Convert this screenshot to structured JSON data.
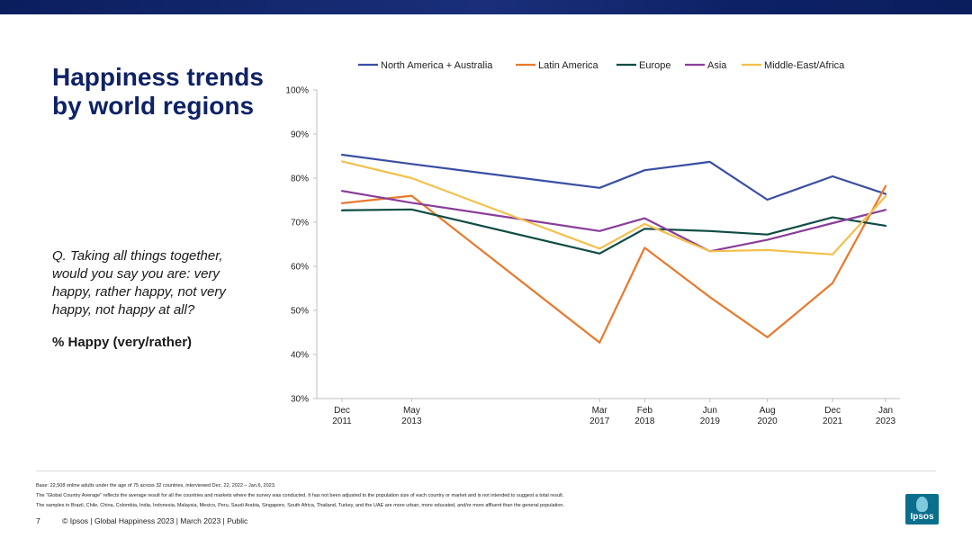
{
  "slide": {
    "title": "Happiness trends by world regions",
    "question": "Q. Taking all things together, would you say you are: very happy, rather happy, not very happy, not happy at all?",
    "metric_label": "% Happy (very/rather)"
  },
  "footnotes": {
    "base": "Base: 22,508 online adults under the age of 75 across 32 countries, interviewed Dec. 22, 2022 – Jan.6, 2023.",
    "gca": "The “Global Country Average” reflects the average result for all the countries and markets where the survey was conducted. It has not been adjusted to the population size of each country or market and is not intended to suggest a total result.",
    "samples": "The samples in Brazil, Chile, China, Colombia, India, Indonesia, Malaysia, Mexico, Peru, Saudi Arabia, Singapore, South Africa, Thailand, Turkey, and the UAE are more urban, more educated, and/or more affluent than the general population."
  },
  "footer": {
    "page_number": "7",
    "text": "© Ipsos | Global Happiness 2023 | March 2023 | Public"
  },
  "logo": {
    "text": "Ipsos",
    "color": "#0a6e8c"
  },
  "chart_data": {
    "type": "line",
    "title": "",
    "xlabel": "",
    "ylabel": "% Happy (very/rather)",
    "ylim": [
      30,
      100
    ],
    "yticks": [
      "30%",
      "40%",
      "50%",
      "60%",
      "70%",
      "80%",
      "90%",
      "100%"
    ],
    "categories": [
      {
        "month": "Dec",
        "year": "2011",
        "t": 0
      },
      {
        "month": "May",
        "year": "2013",
        "t": 1.42
      },
      {
        "month": "Mar",
        "year": "2017",
        "t": 5.25
      },
      {
        "month": "Feb",
        "year": "2018",
        "t": 6.17
      },
      {
        "month": "Jun",
        "year": "2019",
        "t": 7.5
      },
      {
        "month": "Aug",
        "year": "2020",
        "t": 8.67
      },
      {
        "month": "Dec",
        "year": "2021",
        "t": 10
      },
      {
        "month": "Jan",
        "year": "2023",
        "t": 11.08
      }
    ],
    "legend_position": "top",
    "series": [
      {
        "name": "North America + Australia",
        "color": "#3a4ea4",
        "values": [
          85.3,
          83.2,
          77.8,
          81.8,
          83.7,
          75.1,
          80.4,
          76.4
        ]
      },
      {
        "name": "Latin America",
        "color": "#e8792d",
        "values": [
          74.3,
          76.0,
          42.7,
          64.2,
          53.0,
          43.9,
          56.2,
          78.2
        ]
      },
      {
        "name": "Europe",
        "color": "#0f4c44",
        "values": [
          72.7,
          72.9,
          62.9,
          68.5,
          68.0,
          67.2,
          71.1,
          69.2
        ]
      },
      {
        "name": "Asia",
        "color": "#8a3d9a",
        "values": [
          77.1,
          74.4,
          68.0,
          70.9,
          63.4,
          66.0,
          69.8,
          72.8
        ]
      },
      {
        "name": "Middle-East/Africa",
        "color": "#f4c04c",
        "values": [
          83.8,
          80.0,
          64.0,
          69.6,
          63.4,
          63.7,
          62.7,
          75.9
        ]
      }
    ]
  }
}
